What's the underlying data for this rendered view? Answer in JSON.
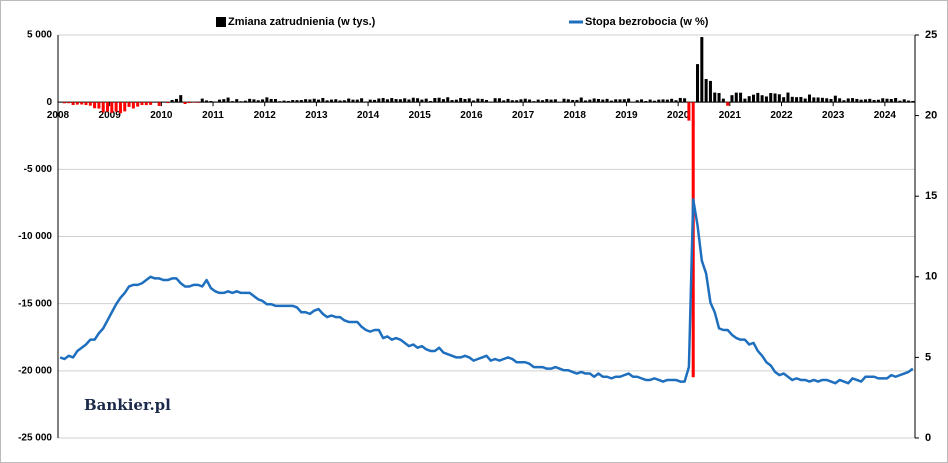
{
  "chart_data": {
    "type": "bar",
    "watermark": "Bankier.pl",
    "categories": [
      "2008",
      null,
      null,
      null,
      null,
      null,
      null,
      null,
      null,
      null,
      null,
      null,
      "2009",
      null,
      null,
      null,
      null,
      null,
      null,
      null,
      null,
      null,
      null,
      null,
      "2010",
      null,
      null,
      null,
      null,
      null,
      null,
      null,
      null,
      null,
      null,
      null,
      "2011",
      null,
      null,
      null,
      null,
      null,
      null,
      null,
      null,
      null,
      null,
      null,
      "2012",
      null,
      null,
      null,
      null,
      null,
      null,
      null,
      null,
      null,
      null,
      null,
      "2013",
      null,
      null,
      null,
      null,
      null,
      null,
      null,
      null,
      null,
      null,
      null,
      "2014",
      null,
      null,
      null,
      null,
      null,
      null,
      null,
      null,
      null,
      null,
      null,
      "2015",
      null,
      null,
      null,
      null,
      null,
      null,
      null,
      null,
      null,
      null,
      null,
      "2016",
      null,
      null,
      null,
      null,
      null,
      null,
      null,
      null,
      null,
      null,
      null,
      "2017",
      null,
      null,
      null,
      null,
      null,
      null,
      null,
      null,
      null,
      null,
      null,
      "2018",
      null,
      null,
      null,
      null,
      null,
      null,
      null,
      null,
      null,
      null,
      null,
      "2019",
      null,
      null,
      null,
      null,
      null,
      null,
      null,
      null,
      null,
      null,
      null,
      "2020",
      null,
      null,
      null,
      null,
      null,
      null,
      null,
      null,
      null,
      null,
      null,
      "2021",
      null,
      null,
      null,
      null,
      null,
      null,
      null,
      null,
      null,
      null,
      null,
      "2022",
      null,
      null,
      null,
      null,
      null,
      null,
      null,
      null,
      null,
      null,
      null,
      "2023",
      null,
      null,
      null,
      null,
      null,
      null,
      null,
      null,
      null,
      null,
      null,
      "2024",
      null,
      null,
      null,
      null,
      null,
      null
    ],
    "series": [
      {
        "name": "Zmiana zatrudnienia (w tys.)",
        "type": "bar",
        "color": "#000000",
        "negative_color": "#ff0000",
        "values": [
          17,
          -84,
          -78,
          -210,
          -182,
          -172,
          -210,
          -259,
          -452,
          -474,
          -765,
          -697,
          -791,
          -703,
          -823,
          -686,
          -351,
          -470,
          -329,
          -212,
          -219,
          -200,
          -7,
          -279,
          14,
          -68,
          164,
          243,
          524,
          -137,
          -65,
          -30,
          -49,
          266,
          127,
          86,
          42,
          188,
          225,
          346,
          77,
          225,
          69,
          110,
          248,
          209,
          141,
          209,
          358,
          237,
          233,
          70,
          116,
          88,
          160,
          150,
          161,
          225,
          203,
          256,
          190,
          311,
          135,
          192,
          218,
          125,
          140,
          269,
          185,
          189,
          291,
          45,
          187,
          168,
          272,
          310,
          213,
          306,
          232,
          218,
          286,
          200,
          331,
          292,
          190,
          265,
          84,
          309,
          332,
          226,
          365,
          157,
          186,
          312,
          237,
          279,
          126,
          265,
          243,
          157,
          44,
          297,
          291,
          135,
          243,
          146,
          144,
          214,
          259,
          195,
          74,
          190,
          145,
          231,
          190,
          212,
          7,
          256,
          216,
          164,
          167,
          346,
          128,
          187,
          277,
          236,
          192,
          244,
          115,
          211,
          208,
          219,
          267,
          1,
          146,
          210,
          85,
          194,
          106,
          189,
          208,
          190,
          249,
          143,
          315,
          289,
          -1373,
          -20477,
          2833,
          4846,
          1726,
          1583,
          716,
          680,
          264,
          -268,
          520,
          710,
          704,
          263,
          447,
          557,
          689,
          517,
          424,
          677,
          647,
          588,
          370,
          714,
          398,
          368,
          386,
          272,
          568,
          352,
          350,
          324,
          290,
          239,
          482,
          287,
          146,
          278,
          303,
          240,
          184,
          210,
          246,
          165,
          182,
          290,
          256,
          236,
          310,
          108,
          216,
          118,
          89
        ]
      },
      {
        "name": "Stopa bezrobocia (w %)",
        "type": "line",
        "axis": "y2",
        "color": "#1f6fbf",
        "values": [
          5.0,
          4.9,
          5.1,
          5.0,
          5.4,
          5.6,
          5.8,
          6.1,
          6.1,
          6.5,
          6.8,
          7.3,
          7.8,
          8.3,
          8.7,
          9.0,
          9.4,
          9.5,
          9.5,
          9.6,
          9.8,
          10.0,
          9.9,
          9.9,
          9.8,
          9.8,
          9.9,
          9.9,
          9.6,
          9.4,
          9.4,
          9.5,
          9.5,
          9.4,
          9.8,
          9.3,
          9.1,
          9.0,
          9.0,
          9.1,
          9.0,
          9.1,
          9.0,
          9.0,
          9.0,
          8.8,
          8.6,
          8.5,
          8.3,
          8.3,
          8.2,
          8.2,
          8.2,
          8.2,
          8.2,
          8.1,
          7.8,
          7.8,
          7.7,
          7.9,
          8.0,
          7.7,
          7.5,
          7.6,
          7.5,
          7.5,
          7.3,
          7.2,
          7.2,
          7.2,
          6.9,
          6.7,
          6.6,
          6.7,
          6.7,
          6.2,
          6.3,
          6.1,
          6.2,
          6.1,
          5.9,
          5.7,
          5.8,
          5.6,
          5.7,
          5.5,
          5.4,
          5.4,
          5.6,
          5.3,
          5.2,
          5.1,
          5.0,
          5.0,
          5.1,
          5.0,
          4.8,
          4.9,
          5.0,
          5.1,
          4.8,
          4.9,
          4.8,
          4.9,
          5.0,
          4.9,
          4.7,
          4.7,
          4.7,
          4.6,
          4.4,
          4.4,
          4.4,
          4.3,
          4.3,
          4.4,
          4.3,
          4.2,
          4.2,
          4.1,
          4.0,
          4.1,
          4.0,
          4.0,
          3.8,
          4.0,
          3.8,
          3.8,
          3.7,
          3.8,
          3.8,
          3.9,
          4.0,
          3.8,
          3.8,
          3.7,
          3.6,
          3.6,
          3.7,
          3.6,
          3.5,
          3.6,
          3.6,
          3.6,
          3.5,
          3.5,
          4.4,
          14.8,
          13.2,
          11.0,
          10.2,
          8.4,
          7.8,
          6.8,
          6.7,
          6.7,
          6.4,
          6.2,
          6.1,
          6.1,
          5.8,
          5.9,
          5.4,
          5.1,
          4.7,
          4.5,
          4.1,
          3.9,
          4.0,
          3.8,
          3.6,
          3.7,
          3.6,
          3.6,
          3.5,
          3.6,
          3.5,
          3.6,
          3.6,
          3.5,
          3.4,
          3.6,
          3.5,
          3.4,
          3.7,
          3.6,
          3.5,
          3.8,
          3.8,
          3.8,
          3.7,
          3.7,
          3.7,
          3.9,
          3.8,
          3.9,
          4.0,
          4.1,
          4.3
        ]
      }
    ],
    "ylim": [
      -25000,
      5000
    ],
    "yticks": [
      {
        "value": 5000,
        "label": "5 000"
      },
      0,
      {
        "value": -5000,
        "label": "-5 000"
      },
      {
        "value": -10000,
        "label": "-10 000"
      },
      {
        "value": -15000,
        "label": "-15 000"
      },
      {
        "value": -20000,
        "label": "-20 000"
      },
      {
        "value": -25000,
        "label": "-25 000"
      }
    ],
    "y2lim": [
      0,
      25
    ],
    "y2ticks": [
      0,
      5,
      10,
      15,
      20,
      25
    ],
    "grid": true
  }
}
